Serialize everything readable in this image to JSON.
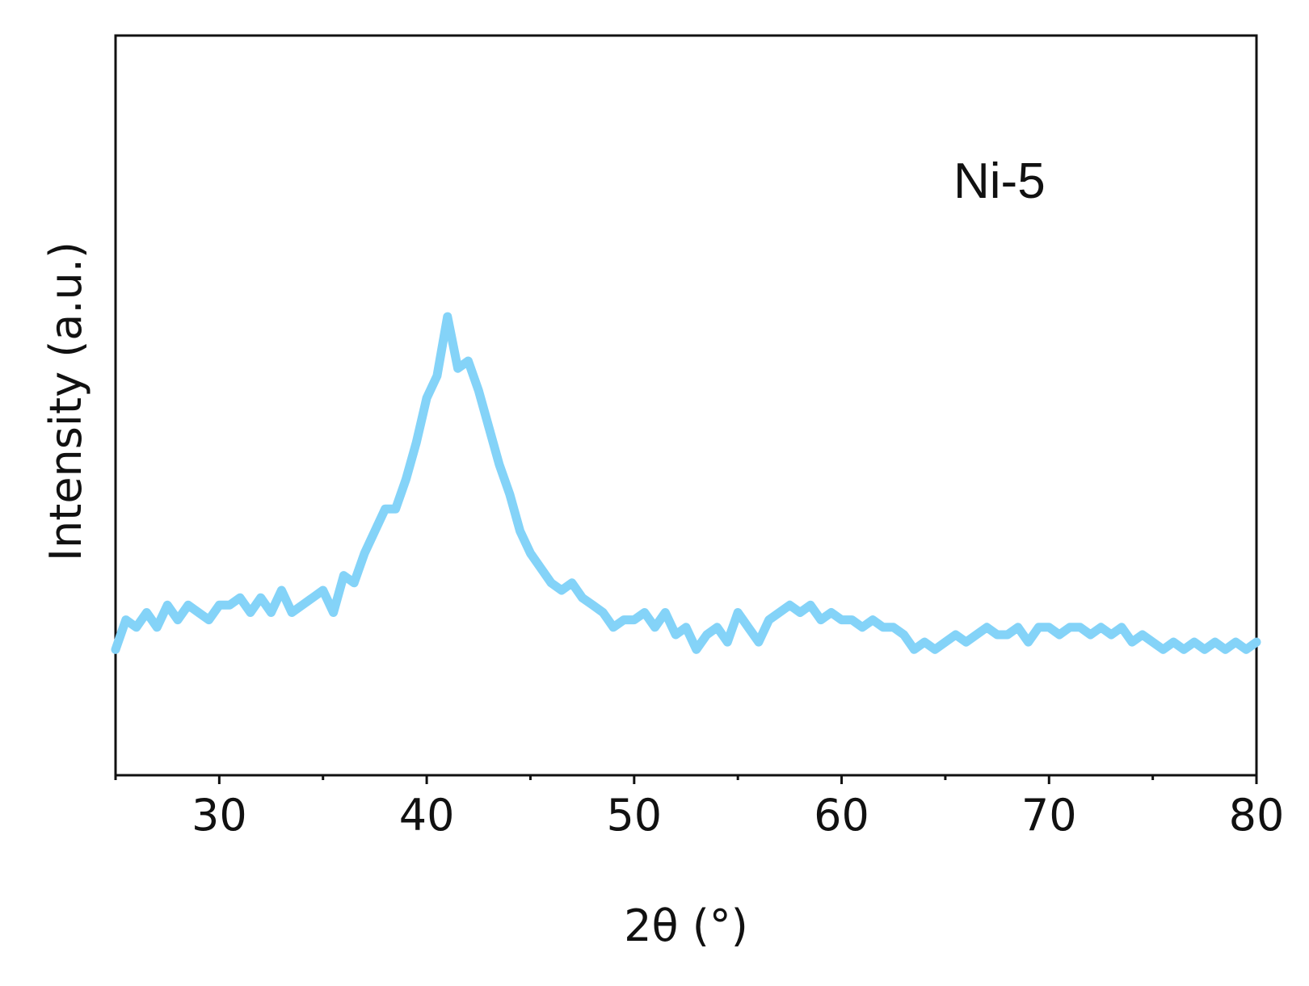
{
  "chart_data": {
    "type": "line",
    "xlabel": "2θ (°)",
    "ylabel": "Intensity (a.u.)",
    "annotation": "Ni-5",
    "xlim": [
      25,
      80
    ],
    "ylim": [
      0,
      1
    ],
    "x_ticks": [
      30,
      40,
      50,
      60,
      70,
      80
    ],
    "x_minor_ticks": [
      25,
      35,
      45,
      55,
      65,
      75
    ],
    "y_ticks": [],
    "grid": false,
    "line_color": "#84D3F8",
    "series": [
      {
        "x": [
          25.0,
          25.5,
          26.0,
          26.5,
          27.0,
          27.5,
          28.0,
          28.5,
          29.0,
          29.5,
          30.0,
          30.5,
          31.0,
          31.5,
          32.0,
          32.5,
          33.0,
          33.5,
          34.0,
          34.5,
          35.0,
          35.5,
          36.0,
          36.5,
          37.0,
          37.5,
          38.0,
          38.5,
          39.0,
          39.5,
          40.0,
          40.5,
          41.0,
          41.5,
          42.0,
          42.5,
          43.0,
          43.5,
          44.0,
          44.5,
          45.0,
          45.5,
          46.0,
          46.5,
          47.0,
          47.5,
          48.0,
          48.5,
          49.0,
          49.5,
          50.0,
          50.5,
          51.0,
          51.5,
          52.0,
          52.5,
          53.0,
          53.5,
          54.0,
          54.5,
          55.0,
          55.5,
          56.0,
          56.5,
          57.0,
          57.5,
          58.0,
          58.5,
          59.0,
          59.5,
          60.0,
          60.5,
          61.0,
          61.5,
          62.0,
          62.5,
          63.0,
          63.5,
          64.0,
          64.5,
          65.0,
          65.5,
          66.0,
          66.5,
          67.0,
          67.5,
          68.0,
          68.5,
          69.0,
          69.5,
          70.0,
          70.5,
          71.0,
          71.5,
          72.0,
          72.5,
          73.0,
          73.5,
          74.0,
          74.5,
          75.0,
          75.5,
          76.0,
          76.5,
          77.0,
          77.5,
          78.0,
          78.5,
          79.0,
          79.5,
          80.0
        ],
        "y": [
          0.17,
          0.21,
          0.2,
          0.22,
          0.2,
          0.23,
          0.21,
          0.23,
          0.22,
          0.21,
          0.23,
          0.23,
          0.24,
          0.22,
          0.24,
          0.22,
          0.25,
          0.22,
          0.23,
          0.24,
          0.25,
          0.22,
          0.27,
          0.26,
          0.3,
          0.33,
          0.36,
          0.36,
          0.4,
          0.45,
          0.51,
          0.54,
          0.62,
          0.55,
          0.56,
          0.52,
          0.47,
          0.42,
          0.38,
          0.33,
          0.3,
          0.28,
          0.26,
          0.25,
          0.26,
          0.24,
          0.23,
          0.22,
          0.2,
          0.21,
          0.21,
          0.22,
          0.2,
          0.22,
          0.19,
          0.2,
          0.17,
          0.19,
          0.2,
          0.18,
          0.22,
          0.2,
          0.18,
          0.21,
          0.22,
          0.23,
          0.22,
          0.23,
          0.21,
          0.22,
          0.21,
          0.21,
          0.2,
          0.21,
          0.2,
          0.2,
          0.19,
          0.17,
          0.18,
          0.17,
          0.18,
          0.19,
          0.18,
          0.19,
          0.2,
          0.19,
          0.19,
          0.2,
          0.18,
          0.2,
          0.2,
          0.19,
          0.2,
          0.2,
          0.19,
          0.2,
          0.19,
          0.2,
          0.18,
          0.19,
          0.18,
          0.17,
          0.18,
          0.17,
          0.18,
          0.17,
          0.18,
          0.17,
          0.18,
          0.17,
          0.18
        ]
      }
    ]
  }
}
